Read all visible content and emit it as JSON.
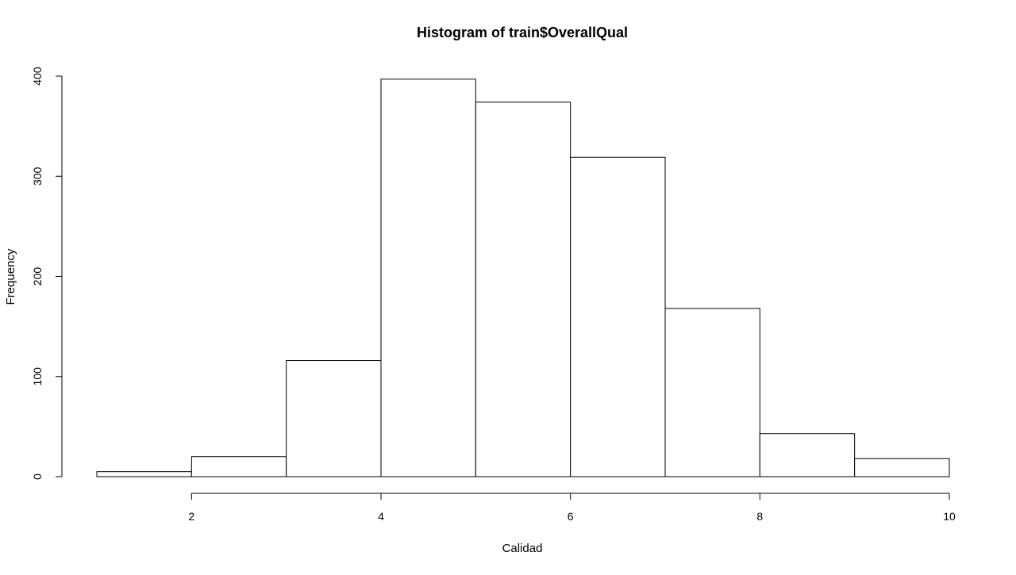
{
  "chart_data": {
    "type": "bar",
    "subtype": "histogram",
    "title": "Histogram of train$OverallQual",
    "xlabel": "Calidad",
    "ylabel": "Frequency",
    "bins": [
      {
        "from": 1,
        "to": 2,
        "count": 5
      },
      {
        "from": 2,
        "to": 3,
        "count": 20
      },
      {
        "from": 3,
        "to": 4,
        "count": 116
      },
      {
        "from": 4,
        "to": 5,
        "count": 397
      },
      {
        "from": 5,
        "to": 6,
        "count": 374
      },
      {
        "from": 6,
        "to": 7,
        "count": 319
      },
      {
        "from": 7,
        "to": 8,
        "count": 168
      },
      {
        "from": 8,
        "to": 9,
        "count": 43
      },
      {
        "from": 9,
        "to": 10,
        "count": 18
      }
    ],
    "xlim": [
      1,
      10
    ],
    "ylim": [
      0,
      400
    ],
    "x_ticks": [
      2,
      4,
      6,
      8,
      10
    ],
    "y_ticks": [
      0,
      100,
      200,
      300,
      400
    ],
    "grid": false,
    "legend": "none",
    "colors": {
      "bar_fill": "#ffffff",
      "bar_stroke": "#000000",
      "background": "#ffffff"
    }
  }
}
